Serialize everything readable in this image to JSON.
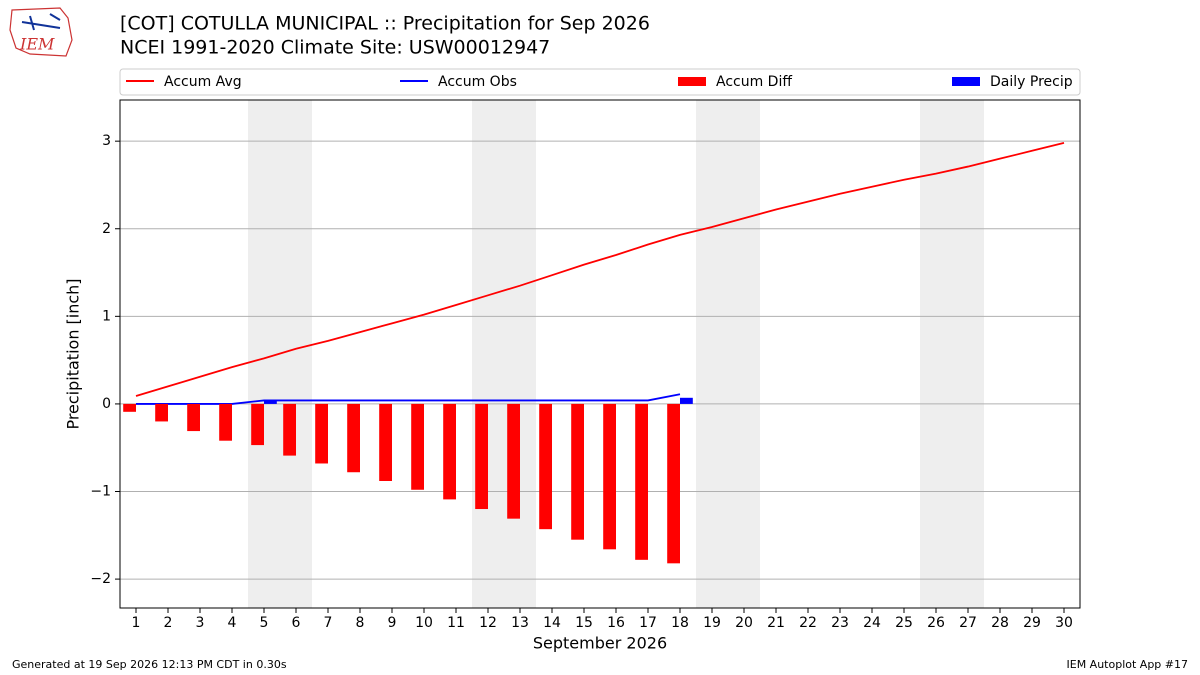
{
  "logo_text": "IEM",
  "footer_left": "Generated at 19 Sep 2026 12:13 PM CDT in 0.30s",
  "footer_right": "IEM Autoplot App #17",
  "chart_data": {
    "type": "bar",
    "title": "[COT] COTULLA MUNICIPAL :: Precipitation for Sep 2026",
    "subtitle": "NCEI 1991-2020 Climate Site: USW00012947",
    "x_label": "September 2026",
    "y_label": "Precipitation [inch]",
    "x": [
      1,
      2,
      3,
      4,
      5,
      6,
      7,
      8,
      9,
      10,
      11,
      12,
      13,
      14,
      15,
      16,
      17,
      18,
      19,
      20,
      21,
      22,
      23,
      24,
      25,
      26,
      27,
      28,
      29,
      30
    ],
    "xlim": [
      0.5,
      30.5
    ],
    "xticks": [
      1,
      2,
      3,
      4,
      5,
      6,
      7,
      8,
      9,
      10,
      11,
      12,
      13,
      14,
      15,
      16,
      17,
      18,
      19,
      20,
      21,
      22,
      23,
      24,
      25,
      26,
      27,
      28,
      29,
      30
    ],
    "ylim": [
      -2.33,
      3.47
    ],
    "yticks": [
      {
        "value": -2,
        "label": "−2"
      },
      {
        "value": -1,
        "label": "−1"
      },
      0,
      1,
      2,
      3
    ],
    "grid": true,
    "shaded_spans": [
      [
        4.5,
        6.5
      ],
      [
        11.5,
        13.5
      ],
      [
        18.5,
        20.5
      ],
      [
        25.5,
        27.5
      ]
    ],
    "shade_color": "#eeeeee",
    "legend": "top",
    "series": [
      {
        "name": "Accum Avg",
        "type": "line",
        "color": "#ff0000",
        "values": [
          0.09,
          0.2,
          0.31,
          0.42,
          0.52,
          0.63,
          0.72,
          0.82,
          0.92,
          1.02,
          1.13,
          1.24,
          1.35,
          1.47,
          1.59,
          1.7,
          1.82,
          1.93,
          2.02,
          2.12,
          2.22,
          2.31,
          2.4,
          2.48,
          2.56,
          2.63,
          2.71,
          2.8,
          2.89,
          2.98
        ]
      },
      {
        "name": "Accum Obs",
        "type": "line",
        "color": "#0000ff",
        "values": [
          0,
          0,
          0,
          0,
          0.04,
          0.04,
          0.04,
          0.04,
          0.04,
          0.04,
          0.04,
          0.04,
          0.04,
          0.04,
          0.04,
          0.04,
          0.04,
          0.11,
          null,
          null,
          null,
          null,
          null,
          null,
          null,
          null,
          null,
          null,
          null,
          null
        ]
      },
      {
        "name": "Accum Diff",
        "type": "bar",
        "color": "#ff0000",
        "offset": -0.2,
        "values": [
          -0.09,
          -0.2,
          -0.31,
          -0.42,
          -0.47,
          -0.59,
          -0.68,
          -0.78,
          -0.88,
          -0.98,
          -1.09,
          -1.2,
          -1.31,
          -1.43,
          -1.55,
          -1.66,
          -1.78,
          -1.82,
          null,
          null,
          null,
          null,
          null,
          null,
          null,
          null,
          null,
          null,
          null,
          null
        ]
      },
      {
        "name": "Daily Precip",
        "type": "bar",
        "color": "#0000ff",
        "offset": 0.2,
        "values": [
          0,
          0,
          0,
          0,
          0.04,
          0,
          0,
          0,
          0,
          0,
          0,
          0,
          0,
          0,
          0,
          0,
          0,
          0.07,
          null,
          null,
          null,
          null,
          null,
          null,
          null,
          null,
          null,
          null,
          null,
          null
        ]
      }
    ]
  }
}
